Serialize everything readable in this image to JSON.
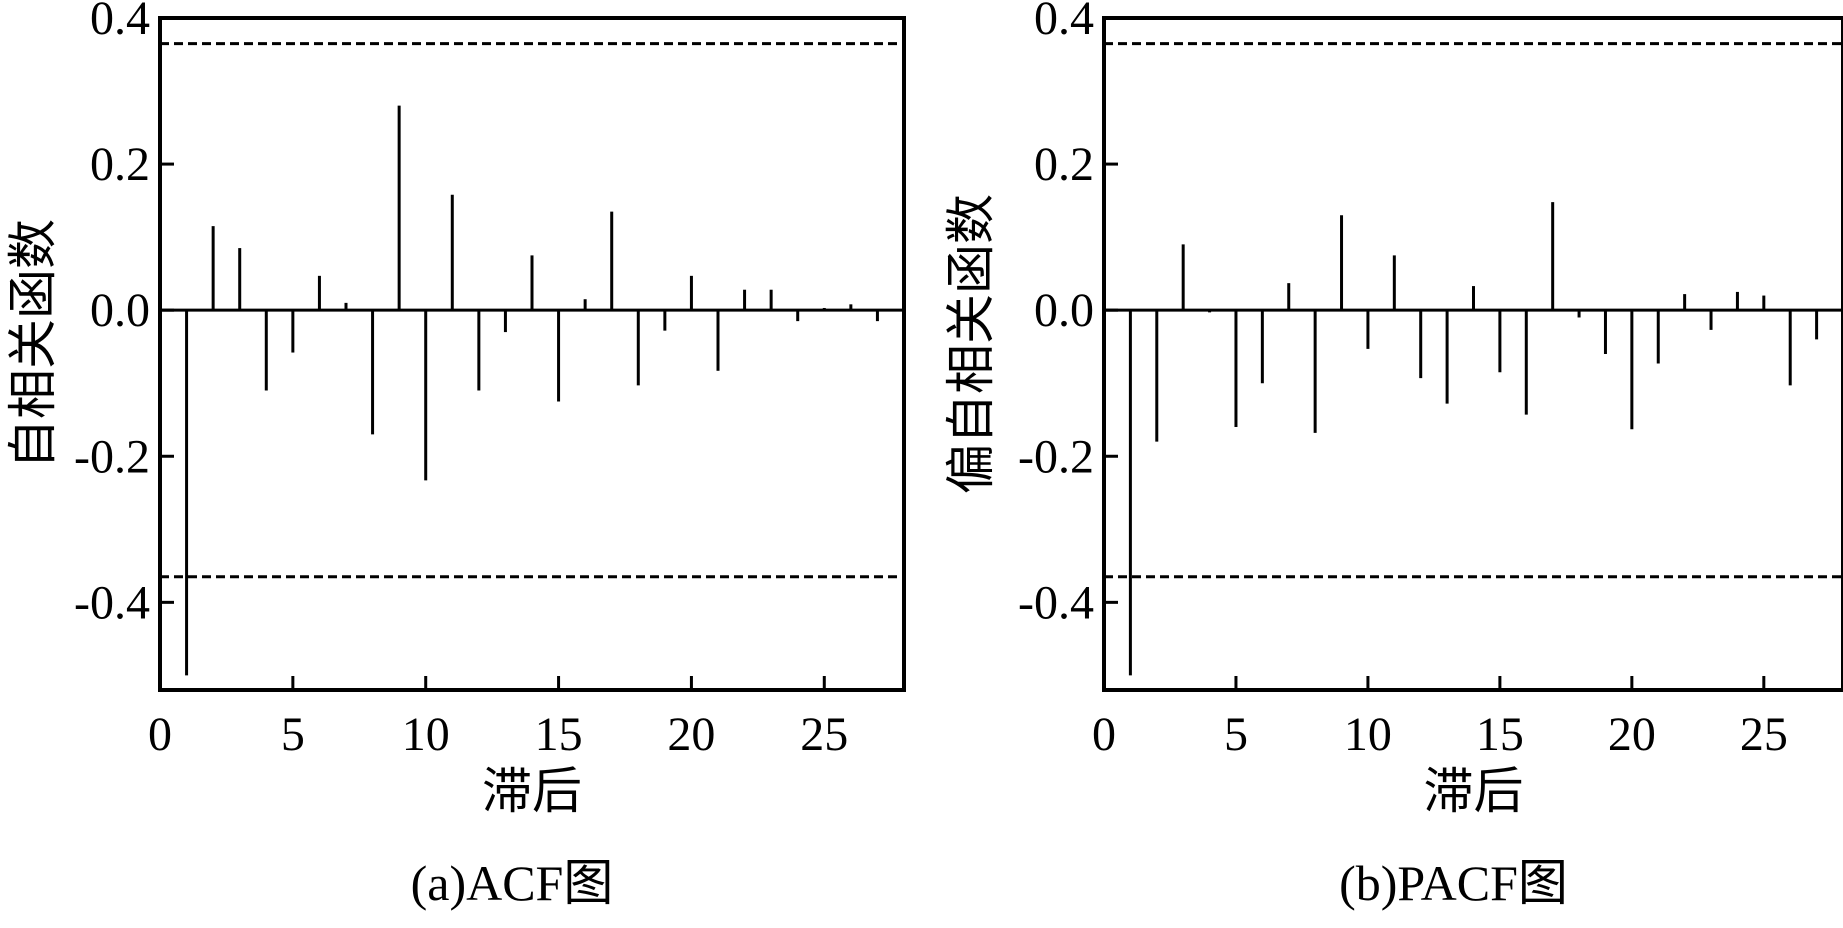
{
  "chart_data": [
    {
      "type": "bar",
      "caption": "(a)ACF图",
      "xlabel": "滞后",
      "ylabel": "自相关函数",
      "xlim": [
        0,
        28
      ],
      "ylim": [
        -0.52,
        0.4
      ],
      "xticks": [
        0,
        5,
        10,
        15,
        20,
        25
      ],
      "xtick_labels": [
        "0",
        "5",
        "10",
        "15",
        "20",
        "25"
      ],
      "yticks": [
        0.4,
        0.2,
        0.0,
        -0.2,
        -0.4
      ],
      "ytick_labels": [
        "0.4",
        "0.2",
        "0.0",
        "-0.2",
        "-0.4"
      ],
      "confidence_bounds": [
        0.365,
        -0.365
      ],
      "grid": false,
      "lags": [
        1,
        2,
        3,
        4,
        5,
        6,
        7,
        8,
        9,
        10,
        11,
        12,
        13,
        14,
        15,
        16,
        17,
        18,
        19,
        20,
        21,
        22,
        23,
        24,
        25,
        26,
        27
      ],
      "values": [
        -0.5,
        0.115,
        0.085,
        -0.11,
        -0.058,
        0.047,
        0.01,
        -0.17,
        0.28,
        -0.233,
        0.158,
        -0.11,
        -0.03,
        0.075,
        -0.125,
        0.015,
        0.135,
        -0.103,
        -0.028,
        0.047,
        -0.083,
        0.028,
        0.028,
        -0.015,
        0.003,
        0.008,
        -0.015
      ]
    },
    {
      "type": "bar",
      "caption": "(b)PACF图",
      "xlabel": "滞后",
      "ylabel": "偏自相关函数",
      "xlim": [
        0,
        28
      ],
      "ylim": [
        -0.52,
        0.4
      ],
      "xticks": [
        0,
        5,
        10,
        15,
        20,
        25
      ],
      "xtick_labels": [
        "0",
        "5",
        "10",
        "15",
        "20",
        "25"
      ],
      "yticks": [
        0.4,
        0.2,
        0.0,
        -0.2,
        -0.4
      ],
      "ytick_labels": [
        "0.4",
        "0.2",
        "0.0",
        "-0.2",
        "-0.4"
      ],
      "confidence_bounds": [
        0.365,
        -0.365
      ],
      "grid": false,
      "lags": [
        1,
        2,
        3,
        4,
        5,
        6,
        7,
        8,
        9,
        10,
        11,
        12,
        13,
        14,
        15,
        16,
        17,
        18,
        19,
        20,
        21,
        22,
        23,
        24,
        25,
        26,
        27
      ],
      "values": [
        -0.5,
        -0.18,
        0.09,
        -0.003,
        -0.16,
        -0.1,
        0.037,
        -0.168,
        0.13,
        -0.053,
        0.075,
        -0.093,
        -0.128,
        0.033,
        -0.085,
        -0.143,
        0.148,
        -0.01,
        -0.06,
        -0.163,
        -0.073,
        0.022,
        -0.027,
        0.025,
        0.02,
        -0.103,
        -0.04
      ]
    }
  ]
}
